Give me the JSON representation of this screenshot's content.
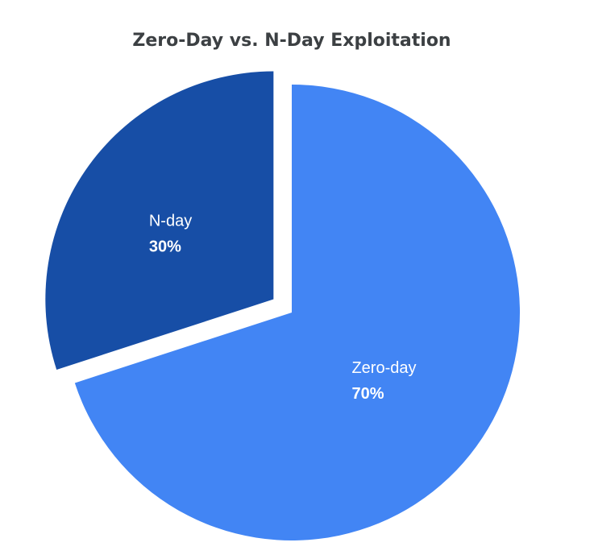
{
  "chart_data": {
    "type": "pie",
    "title": "Zero-Day vs. N-Day Exploitation",
    "categories": [
      "Zero-day",
      "N-day"
    ],
    "values": [
      70,
      30
    ],
    "value_labels": [
      "70%",
      "30%"
    ],
    "colors": [
      "#4285f4",
      "#174ea6"
    ]
  }
}
